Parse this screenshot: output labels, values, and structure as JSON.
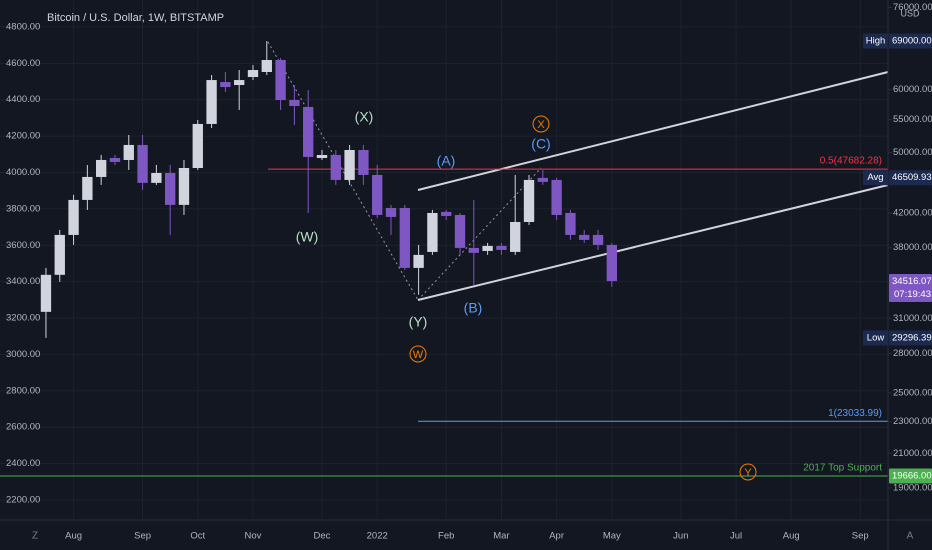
{
  "chart_data": {
    "type": "candlestick",
    "title": "Bitcoin / U.S. Dollar, 1W, BITSTAMP",
    "currency": "USD",
    "x": [
      0,
      1,
      2,
      3,
      4,
      5,
      6,
      7,
      8,
      9,
      10,
      11,
      12,
      13,
      14,
      15,
      16,
      17,
      18,
      19,
      20,
      21,
      22,
      23,
      24,
      25,
      26,
      27,
      28,
      29,
      30,
      31,
      32,
      33,
      34,
      35,
      36,
      37,
      38,
      39,
      40,
      41
    ],
    "open": [
      31580,
      35140,
      39430,
      43620,
      46610,
      49230,
      48950,
      51120,
      45820,
      47150,
      43000,
      47830,
      54310,
      61300,
      60770,
      62190,
      63100,
      65320,
      58200,
      57040,
      49230,
      49660,
      46210,
      50380,
      46880,
      42620,
      42620,
      35850,
      37540,
      42140,
      41770,
      37980,
      37650,
      38200,
      37540,
      40930,
      46480,
      46210,
      42010,
      39430,
      39430,
      38310
    ],
    "high": [
      35850,
      40000,
      44260,
      48250,
      49660,
      49660,
      52610,
      52610,
      48250,
      48250,
      48950,
      54940,
      62550,
      63100,
      63460,
      64380,
      69000,
      65700,
      60770,
      59900,
      50380,
      50380,
      51120,
      51120,
      48250,
      43000,
      43000,
      38310,
      42380,
      42380,
      42010,
      43620,
      38530,
      38530,
      46880,
      46880,
      47560,
      46480,
      42380,
      40000,
      40000,
      38530
    ],
    "low": [
      29296.39,
      34430,
      38310,
      42380,
      45550,
      48250,
      47560,
      44900,
      45550,
      39430,
      41770,
      47560,
      53680,
      59560,
      56550,
      61650,
      62550,
      56550,
      54150,
      42010,
      48950,
      45550,
      45550,
      45550,
      41410,
      39430,
      35640,
      33170,
      37220,
      41170,
      37220,
      34140,
      37220,
      37220,
      37220,
      40580,
      45550,
      41170,
      38870,
      38530,
      37760,
      33950
    ],
    "close": [
      35140,
      39430,
      43620,
      46610,
      48950,
      48670,
      51120,
      45820,
      47150,
      43000,
      47830,
      54310,
      61650,
      60420,
      61650,
      63460,
      65320,
      58200,
      57200,
      49380,
      49660,
      46210,
      50380,
      46880,
      41770,
      41530,
      35850,
      37220,
      42010,
      41650,
      37980,
      37440,
      38200,
      37760,
      40930,
      46210,
      45950,
      41770,
      39430,
      38870,
      38310,
      34516.07
    ],
    "up_color": "#d1d4dc",
    "down_color": "#7e57c2",
    "axis": "y2",
    "xlim": [
      -3.33,
      61.01
    ],
    "xticks": [
      {
        "value": 2,
        "label": "Aug"
      },
      {
        "value": 7,
        "label": "Sep"
      },
      {
        "value": 11,
        "label": "Oct"
      },
      {
        "value": 15,
        "label": "Nov"
      },
      {
        "value": 20,
        "label": "Dec"
      },
      {
        "value": 24,
        "label": "2022"
      },
      {
        "value": 29,
        "label": "Feb"
      },
      {
        "value": 33,
        "label": "Mar"
      },
      {
        "value": 37,
        "label": "Apr"
      },
      {
        "value": 41,
        "label": "May"
      },
      {
        "value": 46,
        "label": "Jun"
      },
      {
        "value": 50,
        "label": "Jul"
      },
      {
        "value": 54,
        "label": "Aug"
      },
      {
        "value": 59,
        "label": "Sep"
      }
    ],
    "ylim": [
      2090,
      4948
    ],
    "yticks": [
      {
        "value": 4800,
        "label": "4800.00"
      },
      {
        "value": 4600,
        "label": "4600.00"
      },
      {
        "value": 4400,
        "label": "4400.00"
      },
      {
        "value": 4200,
        "label": "4200.00"
      },
      {
        "value": 4000,
        "label": "4000.00"
      },
      {
        "value": 3800,
        "label": "3800.00"
      },
      {
        "value": 3600,
        "label": "3600.00"
      },
      {
        "value": 3400,
        "label": "3400.00"
      },
      {
        "value": 3200,
        "label": "3200.00"
      },
      {
        "value": 3000,
        "label": "3000.00"
      },
      {
        "value": 2800,
        "label": "2800.00"
      },
      {
        "value": 2600,
        "label": "2600.00"
      },
      {
        "value": 2400,
        "label": "2400.00"
      },
      {
        "value": 2200,
        "label": "2200.00"
      }
    ],
    "y2lim": [
      17320,
      77670
    ],
    "y2log": true,
    "y2ticks": [
      {
        "value": 76000,
        "label": "76000.00"
      },
      {
        "value": 60000,
        "label": "60000.00"
      },
      {
        "value": 55000,
        "label": "55000.00"
      },
      {
        "value": 50000,
        "label": "50000.00"
      },
      {
        "value": 42000,
        "label": "42000.00"
      },
      {
        "value": 38000,
        "label": "38000.00"
      },
      {
        "value": 31000,
        "label": "31000.00"
      },
      {
        "value": 28000,
        "label": "28000.00"
      },
      {
        "value": 25000,
        "label": "25000.00"
      },
      {
        "value": 23000,
        "label": "23000.00"
      },
      {
        "value": 21000,
        "label": "21000.00"
      },
      {
        "value": 19000,
        "label": "19000.00"
      }
    ],
    "grid": true,
    "price_badges": [
      {
        "value": 69000,
        "label": "69000.00",
        "tag": "High",
        "color": "#1c2a4f"
      },
      {
        "value": 46509.93,
        "label": "46509.93",
        "tag": "Avg",
        "color": "#1c2a4f"
      },
      {
        "value": 34516.07,
        "label": "34516.07",
        "timer": "07:19:43",
        "color": "#7e57c2"
      },
      {
        "value": 29296.39,
        "label": "29296.39",
        "tag": "Low",
        "color": "#1c2a4f"
      },
      {
        "value": 19666,
        "label": "19666.00",
        "color": "#4caf50"
      }
    ],
    "levels": [
      {
        "value": 47682.28,
        "label": "0.5(47682.28)",
        "color": "#f23645"
      },
      {
        "value": 23033.99,
        "label": "1(23033.99)",
        "color": "#5b9cf6"
      },
      {
        "value": 19666,
        "label": "2017 Top Support",
        "color": "#4caf50"
      }
    ],
    "waves": [
      "(W)",
      "(X)",
      "(Y)",
      "(A)",
      "(B)",
      "(C)",
      "X",
      "W",
      "Y"
    ],
    "ui": {
      "zoom": "Z",
      "auto": "A"
    }
  }
}
